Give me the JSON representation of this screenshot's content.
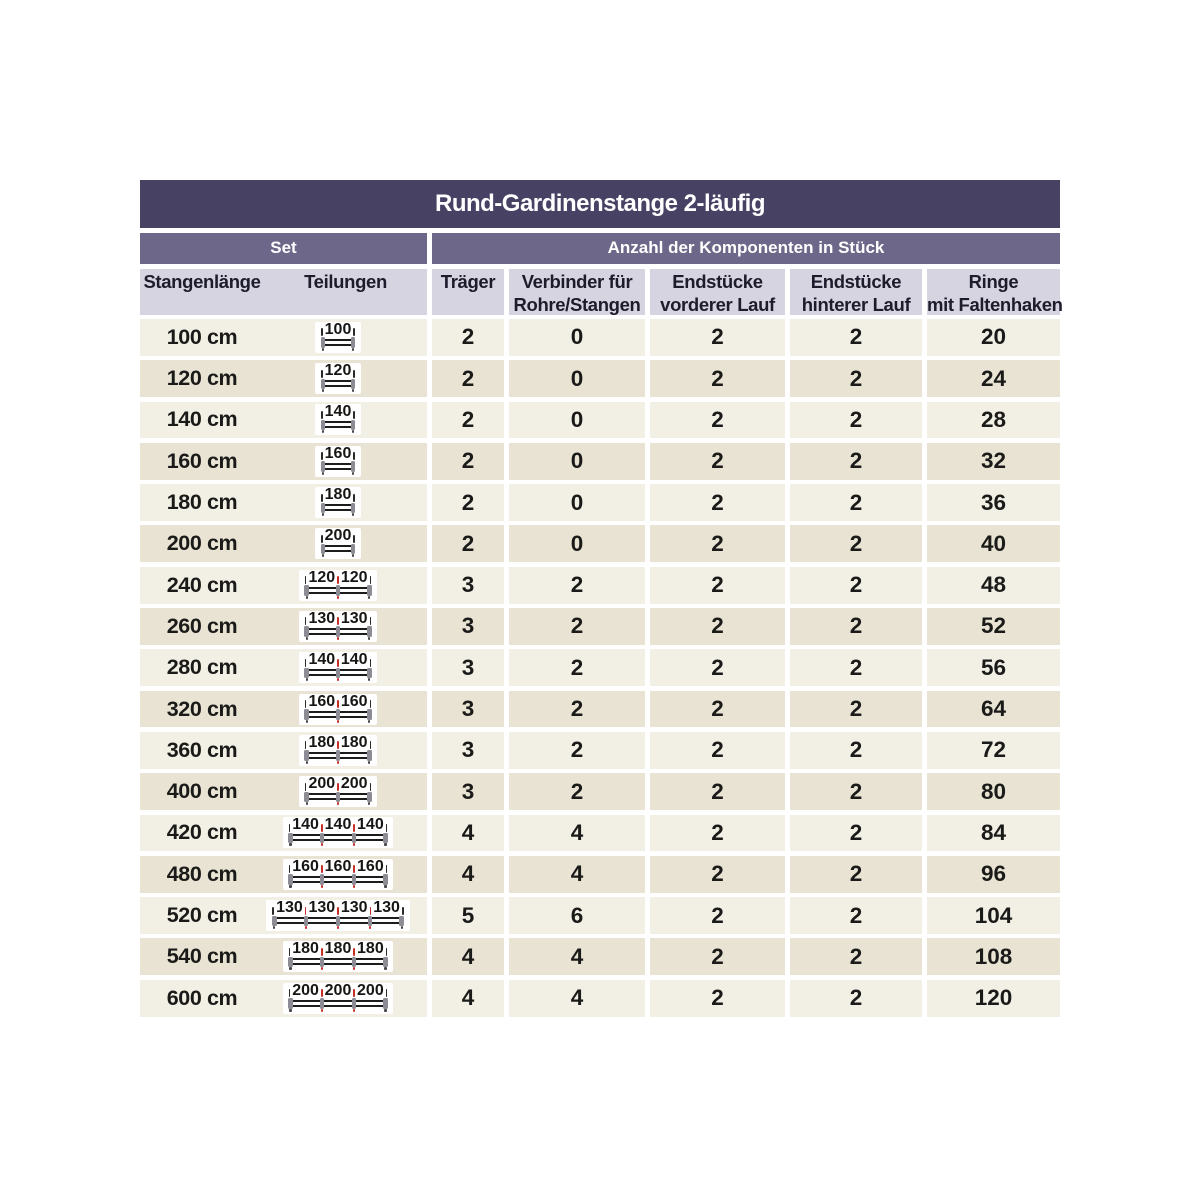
{
  "table": {
    "title": "Rund-Gardinenstange 2-läufig",
    "group_headers": {
      "set": "Set",
      "components": "Anzahl der Komponenten in Stück"
    },
    "column_headers": {
      "length": "Stangenlänge",
      "divisions": "Teilungen",
      "brackets": "Träger",
      "connectors_line1": "Verbinder für",
      "connectors_line2": "Rohre/Stangen",
      "end_front_line1": "Endstücke",
      "end_front_line2": "vorderer Lauf",
      "end_back_line1": "Endstücke",
      "end_back_line2": "hinterer Lauf",
      "rings_line1": "Ringe",
      "rings_line2": "mit Faltenhaken"
    },
    "rows": [
      {
        "length": "100 cm",
        "segments": [
          "100"
        ],
        "traeger": "2",
        "verbinder": "0",
        "endstuecke_vorderer": "2",
        "endstuecke_hinterer": "2",
        "ringe": "20"
      },
      {
        "length": "120 cm",
        "segments": [
          "120"
        ],
        "traeger": "2",
        "verbinder": "0",
        "endstuecke_vorderer": "2",
        "endstuecke_hinterer": "2",
        "ringe": "24"
      },
      {
        "length": "140 cm",
        "segments": [
          "140"
        ],
        "traeger": "2",
        "verbinder": "0",
        "endstuecke_vorderer": "2",
        "endstuecke_hinterer": "2",
        "ringe": "28"
      },
      {
        "length": "160 cm",
        "segments": [
          "160"
        ],
        "traeger": "2",
        "verbinder": "0",
        "endstuecke_vorderer": "2",
        "endstuecke_hinterer": "2",
        "ringe": "32"
      },
      {
        "length": "180 cm",
        "segments": [
          "180"
        ],
        "traeger": "2",
        "verbinder": "0",
        "endstuecke_vorderer": "2",
        "endstuecke_hinterer": "2",
        "ringe": "36"
      },
      {
        "length": "200 cm",
        "segments": [
          "200"
        ],
        "traeger": "2",
        "verbinder": "0",
        "endstuecke_vorderer": "2",
        "endstuecke_hinterer": "2",
        "ringe": "40"
      },
      {
        "length": "240 cm",
        "segments": [
          "120",
          "120"
        ],
        "traeger": "3",
        "verbinder": "2",
        "endstuecke_vorderer": "2",
        "endstuecke_hinterer": "2",
        "ringe": "48"
      },
      {
        "length": "260 cm",
        "segments": [
          "130",
          "130"
        ],
        "traeger": "3",
        "verbinder": "2",
        "endstuecke_vorderer": "2",
        "endstuecke_hinterer": "2",
        "ringe": "52"
      },
      {
        "length": "280 cm",
        "segments": [
          "140",
          "140"
        ],
        "traeger": "3",
        "verbinder": "2",
        "endstuecke_vorderer": "2",
        "endstuecke_hinterer": "2",
        "ringe": "56"
      },
      {
        "length": "320 cm",
        "segments": [
          "160",
          "160"
        ],
        "traeger": "3",
        "verbinder": "2",
        "endstuecke_vorderer": "2",
        "endstuecke_hinterer": "2",
        "ringe": "64"
      },
      {
        "length": "360 cm",
        "segments": [
          "180",
          "180"
        ],
        "traeger": "3",
        "verbinder": "2",
        "endstuecke_vorderer": "2",
        "endstuecke_hinterer": "2",
        "ringe": "72"
      },
      {
        "length": "400 cm",
        "segments": [
          "200",
          "200"
        ],
        "traeger": "3",
        "verbinder": "2",
        "endstuecke_vorderer": "2",
        "endstuecke_hinterer": "2",
        "ringe": "80"
      },
      {
        "length": "420 cm",
        "segments": [
          "140",
          "140",
          "140"
        ],
        "traeger": "4",
        "verbinder": "4",
        "endstuecke_vorderer": "2",
        "endstuecke_hinterer": "2",
        "ringe": "84"
      },
      {
        "length": "480 cm",
        "segments": [
          "160",
          "160",
          "160"
        ],
        "traeger": "4",
        "verbinder": "4",
        "endstuecke_vorderer": "2",
        "endstuecke_hinterer": "2",
        "ringe": "96"
      },
      {
        "length": "520 cm",
        "segments": [
          "130",
          "130",
          "130",
          "130"
        ],
        "traeger": "5",
        "verbinder": "6",
        "endstuecke_vorderer": "2",
        "endstuecke_hinterer": "2",
        "ringe": "104"
      },
      {
        "length": "540 cm",
        "segments": [
          "180",
          "180",
          "180"
        ],
        "traeger": "4",
        "verbinder": "4",
        "endstuecke_vorderer": "2",
        "endstuecke_hinterer": "2",
        "ringe": "108"
      },
      {
        "length": "600 cm",
        "segments": [
          "200",
          "200",
          "200"
        ],
        "traeger": "4",
        "verbinder": "4",
        "endstuecke_vorderer": "2",
        "endstuecke_hinterer": "2",
        "ringe": "120"
      }
    ]
  },
  "colors": {
    "title_bar": "#474164",
    "group_header": "#6d6889",
    "column_header": "#d6d4e0",
    "row_light": "#f2efe5",
    "row_dark": "#e9e3d4",
    "divider_tick_red": "#c62f2a",
    "rod_gray": "#8d8c94",
    "text_dark": "#1a1a18"
  }
}
